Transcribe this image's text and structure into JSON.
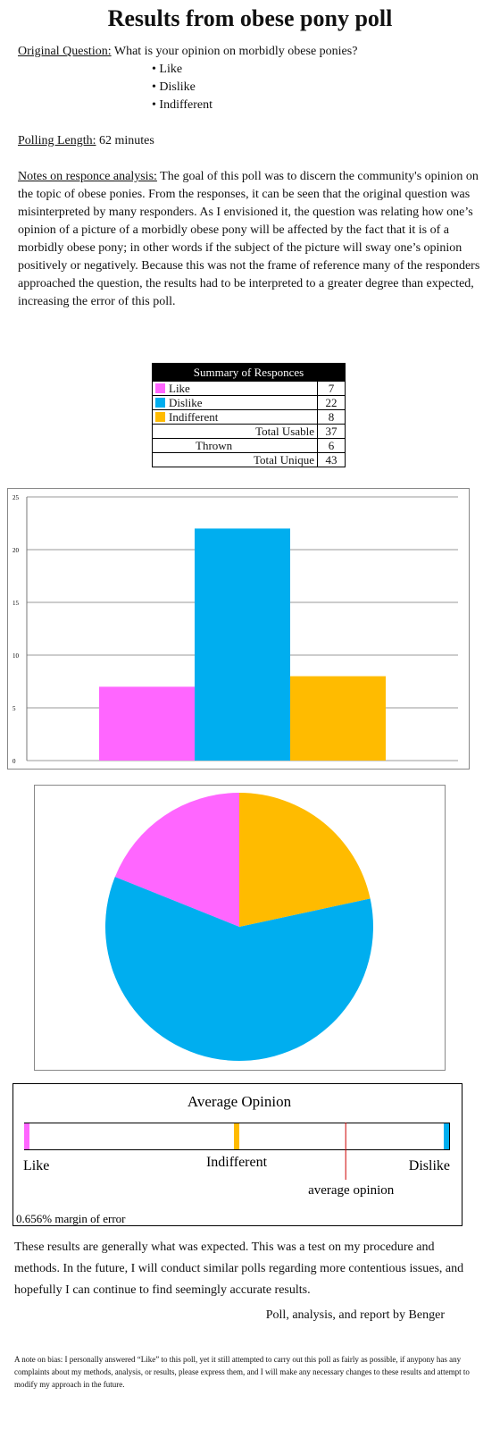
{
  "title": "Results from obese pony poll",
  "question": {
    "label": "Original Question:",
    "text": "What is your opinion on morbidly obese ponies?",
    "options": [
      "Like",
      "Dislike",
      "Indifferent"
    ]
  },
  "polling_length": {
    "label": "Polling Length:",
    "text": "62 minutes"
  },
  "notes": {
    "label": "Notes on responce analysis:",
    "text": "The goal of this poll was to discern the community's opinion on the topic of obese ponies.   From the responses, it can be seen that the original question was misinterpreted by many responders.  As I envisioned it, the question was relating how one’s opinion of a picture of a morbidly obese pony will be affected by the fact that it is of a morbidly obese pony; in other words if the subject of the picture will sway one’s opinion positively or negatively.  Because this was not the frame of reference many of the responders approached the question, the results had to be interpreted to a greater degree than expected, increasing the error of this poll."
  },
  "table": {
    "header": "Summary of Responces",
    "rows": [
      {
        "label": "Like",
        "value": 7,
        "color": "#ff66ff"
      },
      {
        "label": "Dislike",
        "value": 22,
        "color": "#00aeef"
      },
      {
        "label": "Indifferent",
        "value": 8,
        "color": "#ffbb00"
      },
      {
        "label": "Total Usable",
        "value": 37
      },
      {
        "label": "Thrown",
        "value": 6
      },
      {
        "label": "Total Unique",
        "value": 43
      }
    ]
  },
  "chart_data": [
    {
      "type": "bar",
      "categories": [
        null,
        null,
        null
      ],
      "values": [
        7,
        22,
        8
      ],
      "colors": [
        "#ff66ff",
        "#00aeef",
        "#ffbb00"
      ],
      "ylim": [
        0,
        25
      ],
      "yticks": [
        0,
        5,
        10,
        15,
        20,
        25
      ],
      "grid": true
    },
    {
      "type": "pie",
      "values": [
        7,
        22,
        8
      ],
      "colors": [
        "#ff66ff",
        "#00aeef",
        "#ffbb00"
      ]
    }
  ],
  "opinion_scale": {
    "title": "Average Opinion",
    "xlim": [
      -1,
      1
    ],
    "points": [
      {
        "label": "Like",
        "value": -1,
        "color": "#ff66ff"
      },
      {
        "label": "Indifferent",
        "value": 0,
        "color": "#ffbb00"
      },
      {
        "label": "Dislike",
        "value": 1,
        "color": "#00aeef"
      }
    ],
    "average": {
      "label": "average opinion",
      "value": 0.52,
      "color": "#cc0000"
    },
    "margin_label": "0.656% margin of error"
  },
  "closing": "These results are generally what was expected.  This was a test on my procedure and methods.  In the future, I will conduct similar polls regarding more contentious issues, and hopefully I can continue to find seemingly accurate results.",
  "signature": "Poll, analysis, and report by Benger",
  "bias_note": "A note on bias: I personally answered “Like” to this poll, yet it still attempted to carry out this poll as fairly as possible, if anypony has any complaints about my methods, analysis, or results, please express them, and I will make any necessary changes to these results and attempt to modify my approach in the future."
}
